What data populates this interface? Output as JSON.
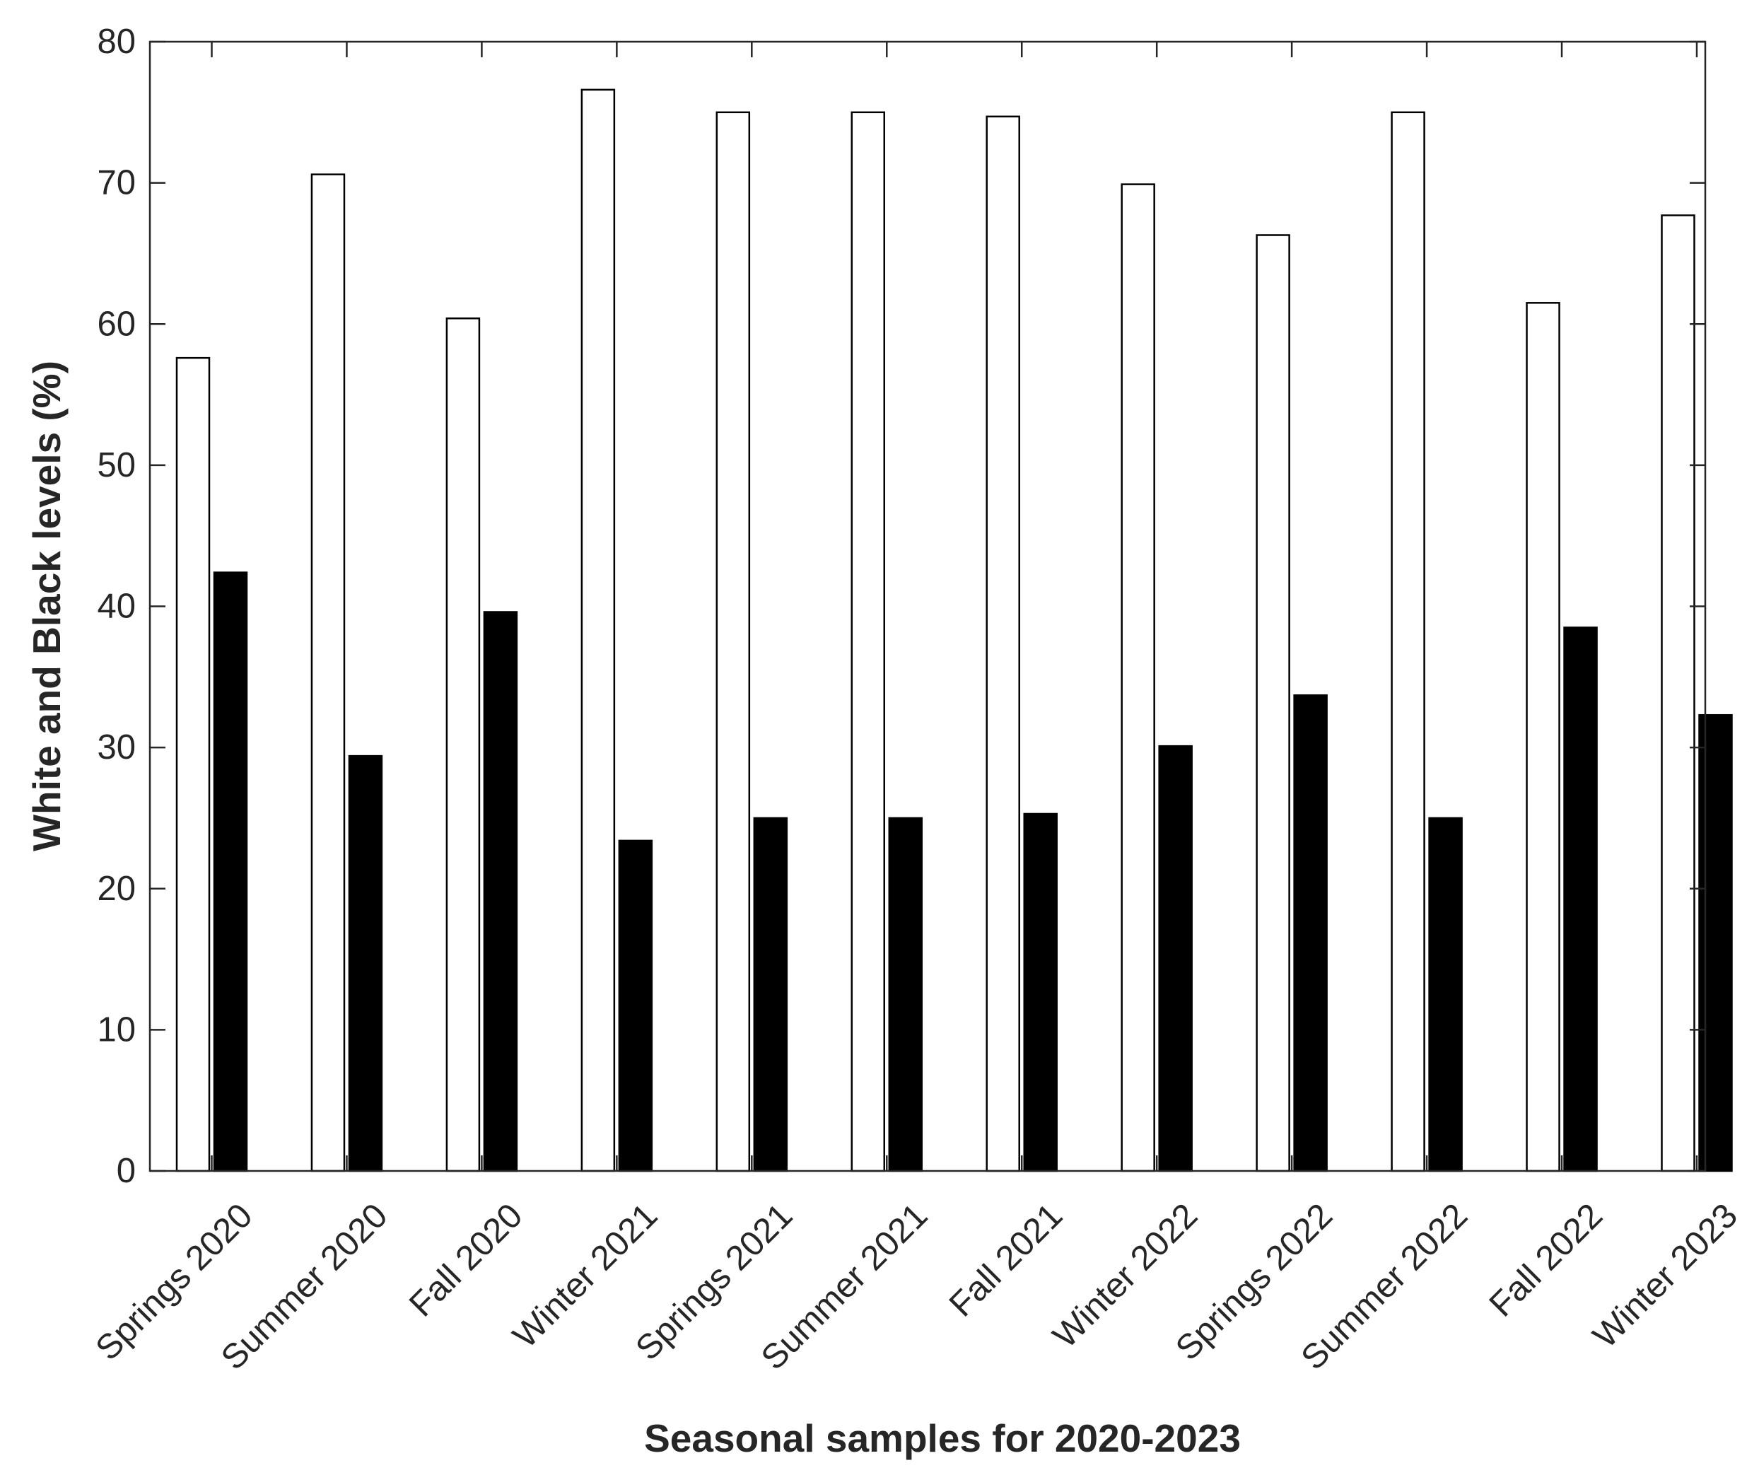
{
  "chart_data": {
    "type": "bar",
    "title": "",
    "xlabel": "Seasonal samples for 2020-2023",
    "ylabel": "White and Black levels (%)",
    "ylim": [
      0,
      80
    ],
    "yticks": [
      "0",
      "10",
      "20",
      "30",
      "40",
      "50",
      "60",
      "70",
      "80"
    ],
    "grid": false,
    "legend": null,
    "categories": [
      "Springs 2020",
      "Summer 2020",
      "Fall 2020",
      "Winter 2021",
      "Springs 2021",
      "Summer 2021",
      "Fall 2021",
      "Winter 2022",
      "Springs 2022",
      "Summer 2022",
      "Fall 2022",
      "Winter 2023"
    ],
    "series": [
      {
        "name": "White",
        "color": "#ffffff",
        "values": [
          57.6,
          70.6,
          60.4,
          76.6,
          75.0,
          75.0,
          74.7,
          69.9,
          66.3,
          75.0,
          61.5,
          67.7
        ]
      },
      {
        "name": "Black",
        "color": "#000000",
        "values": [
          42.4,
          29.4,
          39.6,
          23.4,
          25.0,
          25.0,
          25.3,
          30.1,
          33.7,
          25.0,
          38.5,
          32.3
        ]
      }
    ]
  }
}
